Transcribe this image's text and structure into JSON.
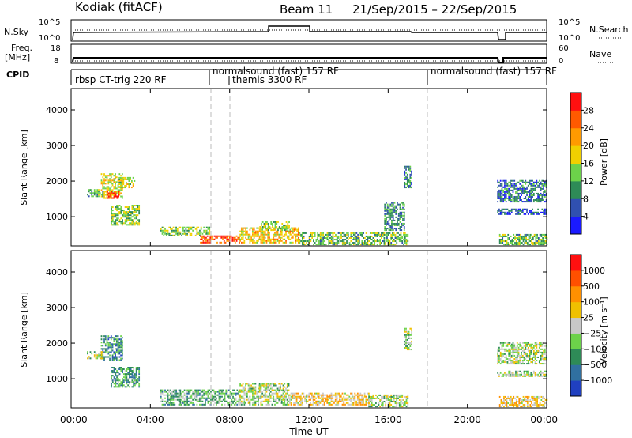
{
  "header": {
    "station": "Kodiak (fitACF)",
    "beam": "Beam 11",
    "dates": "21/Sep/2015 – 22/Sep/2015"
  },
  "summary": {
    "nsky_label": "N.Sky",
    "nsearch_label": "N.Search",
    "freq_label_1": "Freq.",
    "freq_label_2": "[MHz]",
    "nave_label": "Nave",
    "cpid_label": "CPID",
    "left_ticks_top": [
      "10^5",
      "10^0"
    ],
    "right_ticks_top": [
      "10^5",
      "10^0"
    ],
    "left_ticks_freq": [
      "18",
      "8"
    ],
    "right_ticks_nave": [
      "60",
      "0"
    ]
  },
  "cpid_segments": [
    {
      "label": "rbsp CT-trig 220 RF",
      "start_hour": 0.0
    },
    {
      "label": "normalsound (fast) 157 RF",
      "start_hour": 7.0
    },
    {
      "label": "themis 3300 RF",
      "start_hour": 8.0
    },
    {
      "label": "normalsound (fast) 157 RF",
      "start_hour": 18.0
    }
  ],
  "chart_data": [
    {
      "type": "heatmap",
      "title": "",
      "xlabel": "Time UT",
      "ylabel": "Slant Range [km]",
      "xlim": [
        0,
        24
      ],
      "ylim": [
        180,
        4600
      ],
      "x_ticks": [
        "00:00",
        "04:00",
        "08:00",
        "12:00",
        "16:00",
        "20:00",
        "00:00"
      ],
      "y_ticks": [
        1000,
        2000,
        3000,
        4000
      ],
      "colorbar": {
        "label": "Power [dB]",
        "ticks": [
          4,
          8,
          12,
          16,
          20,
          24,
          28
        ],
        "colors": [
          "#1a1aff",
          "#3050b0",
          "#2e8b57",
          "#6cd24a",
          "#f0d000",
          "#ff9a00",
          "#ff5a00",
          "#ff1010"
        ]
      },
      "regions": [
        {
          "t0": 1.5,
          "t1": 2.6,
          "r0": 1500,
          "r1": 2200,
          "level": 0.55
        },
        {
          "t0": 1.8,
          "t1": 2.4,
          "r0": 1500,
          "r1": 1700,
          "level": 0.85
        },
        {
          "t0": 2.4,
          "t1": 3.2,
          "r0": 1800,
          "r1": 2100,
          "level": 0.5
        },
        {
          "t0": 0.8,
          "t1": 1.6,
          "r0": 1550,
          "r1": 1750,
          "level": 0.35
        },
        {
          "t0": 2.0,
          "t1": 3.4,
          "r0": 750,
          "r1": 1300,
          "level": 0.45
        },
        {
          "t0": 4.5,
          "t1": 7.0,
          "r0": 450,
          "r1": 700,
          "level": 0.45
        },
        {
          "t0": 6.5,
          "t1": 8.5,
          "r0": 250,
          "r1": 450,
          "level": 0.85
        },
        {
          "t0": 8.5,
          "t1": 11.5,
          "r0": 250,
          "r1": 700,
          "level": 0.6
        },
        {
          "t0": 9.5,
          "t1": 11.0,
          "r0": 600,
          "r1": 850,
          "level": 0.45
        },
        {
          "t0": 11.5,
          "t1": 17.0,
          "r0": 200,
          "r1": 550,
          "level": 0.4
        },
        {
          "t0": 15.8,
          "t1": 16.8,
          "r0": 600,
          "r1": 1400,
          "level": 0.3
        },
        {
          "t0": 16.8,
          "t1": 17.2,
          "r0": 1800,
          "r1": 2400,
          "level": 0.25
        },
        {
          "t0": 21.5,
          "t1": 24.0,
          "r0": 1400,
          "r1": 2000,
          "level": 0.25
        },
        {
          "t0": 21.5,
          "t1": 24.0,
          "r0": 1050,
          "r1": 1200,
          "level": 0.2
        },
        {
          "t0": 21.6,
          "t1": 24.0,
          "r0": 200,
          "r1": 500,
          "level": 0.4
        }
      ]
    },
    {
      "type": "heatmap",
      "title": "",
      "xlabel": "Time UT",
      "ylabel": "Slant Range [km]",
      "xlim": [
        0,
        24
      ],
      "ylim": [
        180,
        4600
      ],
      "x_ticks": [
        "00:00",
        "04:00",
        "08:00",
        "12:00",
        "16:00",
        "20:00",
        "00:00"
      ],
      "y_ticks": [
        1000,
        2000,
        3000,
        4000
      ],
      "colorbar": {
        "label": "Velocity [m s⁻¹]",
        "ticks": [
          "1000",
          "500",
          "100",
          "25",
          "−25",
          "−100",
          "−500",
          "−1000"
        ],
        "colors": [
          "#2040c0",
          "#3070a0",
          "#2e8b57",
          "#6cd24a",
          "#c8c8c8",
          "#f0c000",
          "#ff9000",
          "#ff5000",
          "#ff1010"
        ]
      },
      "regions": [
        {
          "t0": 1.5,
          "t1": 2.6,
          "r0": 1500,
          "r1": 2200,
          "level": 0.25
        },
        {
          "t0": 0.8,
          "t1": 1.6,
          "r0": 1550,
          "r1": 1750,
          "level": 0.45
        },
        {
          "t0": 2.0,
          "t1": 3.4,
          "r0": 750,
          "r1": 1300,
          "level": 0.3
        },
        {
          "t0": 4.5,
          "t1": 8.5,
          "r0": 250,
          "r1": 700,
          "level": 0.35
        },
        {
          "t0": 8.5,
          "t1": 11.0,
          "r0": 250,
          "r1": 850,
          "level": 0.45
        },
        {
          "t0": 11.0,
          "t1": 15.0,
          "r0": 250,
          "r1": 600,
          "level": 0.6
        },
        {
          "t0": 15.0,
          "t1": 17.0,
          "r0": 200,
          "r1": 550,
          "level": 0.45
        },
        {
          "t0": 16.8,
          "t1": 17.2,
          "r0": 1800,
          "r1": 2400,
          "level": 0.45
        },
        {
          "t0": 21.5,
          "t1": 24.0,
          "r0": 1400,
          "r1": 2000,
          "level": 0.45
        },
        {
          "t0": 21.5,
          "t1": 24.0,
          "r0": 1050,
          "r1": 1200,
          "level": 0.45
        },
        {
          "t0": 21.6,
          "t1": 24.0,
          "r0": 200,
          "r1": 500,
          "level": 0.6
        }
      ]
    }
  ]
}
